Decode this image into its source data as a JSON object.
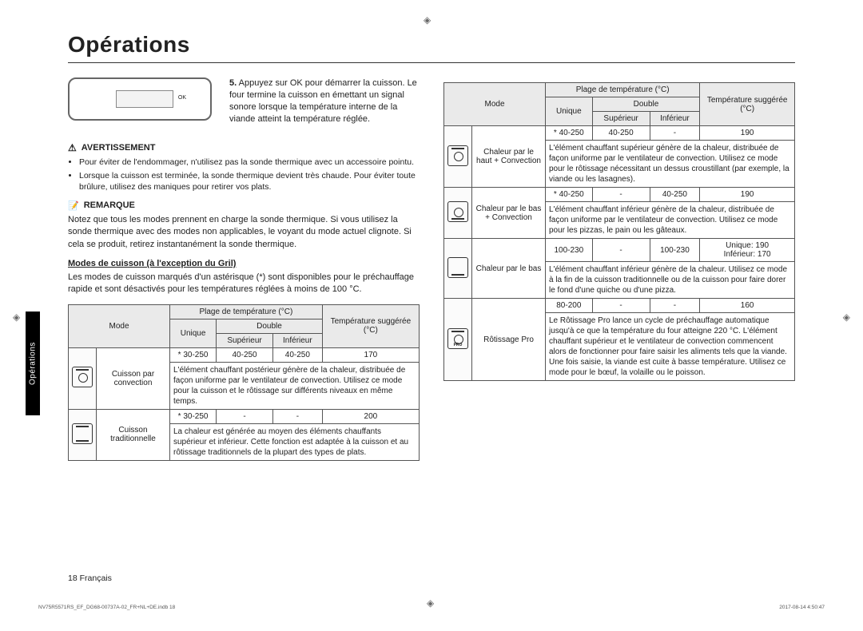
{
  "title": "Opérations",
  "sidetab": "Opérations",
  "step": {
    "number": "5.",
    "text": "Appuyez sur OK pour démarrer la cuisson. Le four termine la cuisson en émettant un signal sonore lorsque la température interne de la viande atteint la température réglée.",
    "ok_label": "OK"
  },
  "warning": {
    "label": "AVERTISSEMENT",
    "items": [
      "Pour éviter de l'endommager, n'utilisez pas la sonde thermique avec un accessoire pointu.",
      "Lorsque la cuisson est terminée, la sonde thermique devient très chaude. Pour éviter toute brûlure, utilisez des maniques pour retirer vos plats."
    ]
  },
  "remark": {
    "label": "REMARQUE",
    "text": "Notez que tous les modes prennent en charge la sonde thermique. Si vous utilisez la sonde thermique avec des modes non applicables, le voyant du mode actuel clignote. Si cela se produit, retirez instantanément la sonde thermique."
  },
  "section_heading": "Modes de cuisson (à l'exception du Gril)",
  "section_intro": "Les modes de cuisson marqués d'un astérisque (*) sont disponibles pour le préchauffage rapide et sont désactivés pour les températures réglées à moins de 100 °C.",
  "table_headers": {
    "mode": "Mode",
    "range": "Plage de température (°C)",
    "unique": "Unique",
    "double": "Double",
    "sup": "Supérieur",
    "inf": "Inférieur",
    "suggested": "Température suggérée (°C)"
  },
  "left_rows": [
    {
      "icon": {
        "top": true,
        "fan": true,
        "bot": false
      },
      "mode": "Cuisson par convection",
      "unique": "* 30-250",
      "sup": "40-250",
      "inf": "40-250",
      "sugg": "170",
      "desc": "L'élément chauffant postérieur génère de la chaleur, distribuée de façon uniforme par le ventilateur de convection. Utilisez ce mode pour la cuisson et le rôtissage sur différents niveaux en même temps."
    },
    {
      "icon": {
        "top": true,
        "fan": false,
        "bot": true
      },
      "mode": "Cuisson traditionnelle",
      "unique": "* 30-250",
      "sup": "-",
      "inf": "-",
      "sugg": "200",
      "desc": "La chaleur est générée au moyen des éléments chauffants supérieur et inférieur. Cette fonction est adaptée à la cuisson et au rôtissage traditionnels de la plupart des types de plats."
    }
  ],
  "right_rows": [
    {
      "icon": {
        "top": true,
        "fan": true,
        "bot": false
      },
      "mode": "Chaleur par le haut + Convection",
      "unique": "* 40-250",
      "sup": "40-250",
      "inf": "-",
      "sugg": "190",
      "desc": "L'élément chauffant supérieur génère de la chaleur, distribuée de façon uniforme par le ventilateur de convection. Utilisez ce mode pour le rôtissage nécessitant un dessus croustillant (par exemple, la viande ou les lasagnes)."
    },
    {
      "icon": {
        "top": false,
        "fan": true,
        "bot": true
      },
      "mode": "Chaleur par le bas + Convection",
      "unique": "* 40-250",
      "sup": "-",
      "inf": "40-250",
      "sugg": "190",
      "desc": "L'élément chauffant inférieur génère de la chaleur, distribuée de façon uniforme par le ventilateur de convection. Utilisez ce mode pour les pizzas, le pain ou les gâteaux."
    },
    {
      "icon": {
        "top": false,
        "fan": false,
        "bot": true
      },
      "mode": "Chaleur par le bas",
      "unique": "100-230",
      "sup": "-",
      "inf": "100-230",
      "sugg": "Unique: 190\nInférieur: 170",
      "desc": "L'élément chauffant inférieur génère de la chaleur. Utilisez ce mode à la fin de la cuisson traditionnelle ou de la cuisson pour faire dorer le fond d'une quiche ou d'une pizza."
    },
    {
      "icon": {
        "top": true,
        "fan": true,
        "bot": false,
        "pro": "PRO"
      },
      "mode": "Rôtissage Pro",
      "unique": "80-200",
      "sup": "-",
      "inf": "-",
      "sugg": "160",
      "desc": "Le Rôtissage Pro lance un cycle de préchauffage automatique jusqu'à ce que la température du four atteigne 220 °C. L'élément chauffant supérieur et le ventilateur de convection commencent alors de fonctionner pour faire saisir les aliments tels que la viande. Une fois saisie, la viande est cuite à basse température. Utilisez ce mode pour le bœuf, la volaille ou le poisson."
    }
  ],
  "footer": {
    "pagenum": "18",
    "lang": "Français",
    "tiny_left": "NV75R5571RS_EF_DG68-00737A-02_FR+NL+DE.indb   18",
    "tiny_right": "2017-08-14   4:50:47"
  }
}
